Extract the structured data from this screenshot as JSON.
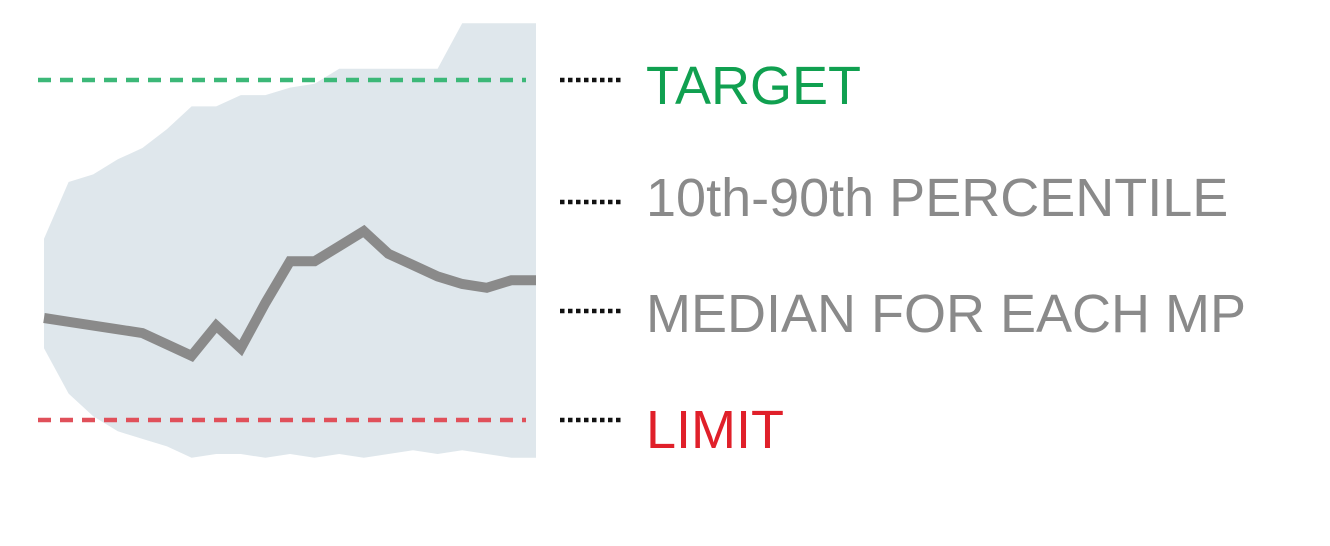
{
  "colors": {
    "target": "#10a050",
    "target_line": "#3cb878",
    "limit": "#e0202a",
    "limit_line": "#e0505a",
    "band": "#dfe7ec",
    "median": "#8a8a8a",
    "label_gray": "#8a8a8a",
    "connector": "#111111"
  },
  "legend": {
    "target": "TARGET",
    "percentile": "10th-90th PERCENTILE",
    "median": "MEDIAN FOR EACH MP",
    "limit": "LIMIT"
  },
  "chart_data": {
    "type": "area",
    "title": "",
    "xlabel": "",
    "ylabel": "",
    "ylim": [
      0,
      100
    ],
    "grid": false,
    "legend_placement": "right",
    "x": [
      0,
      1,
      2,
      3,
      4,
      5,
      6,
      7,
      8,
      9,
      10,
      11,
      12,
      13,
      14,
      15,
      16,
      17,
      18,
      19,
      20
    ],
    "series": [
      {
        "name": "10th-90th PERCENTILE",
        "role": "band",
        "upper": [
          58,
          73,
          75,
          79,
          82,
          87,
          93,
          93,
          96,
          96,
          98,
          99,
          103,
          103,
          103,
          103,
          103,
          115,
          115,
          115,
          115
        ],
        "lower": [
          29,
          17,
          11,
          7,
          5,
          3,
          0,
          1,
          1,
          0,
          1,
          0,
          1,
          0,
          1,
          2,
          1,
          2,
          1,
          0,
          0
        ]
      },
      {
        "name": "MEDIAN FOR EACH MP",
        "role": "median",
        "values": [
          37,
          36,
          35,
          34,
          33,
          30,
          27,
          35,
          29,
          41,
          52,
          52,
          56,
          60,
          54,
          51,
          48,
          46,
          45,
          47,
          47
        ]
      },
      {
        "name": "TARGET",
        "role": "reference",
        "value": 100
      },
      {
        "name": "LIMIT",
        "role": "reference",
        "value": 10
      }
    ]
  }
}
